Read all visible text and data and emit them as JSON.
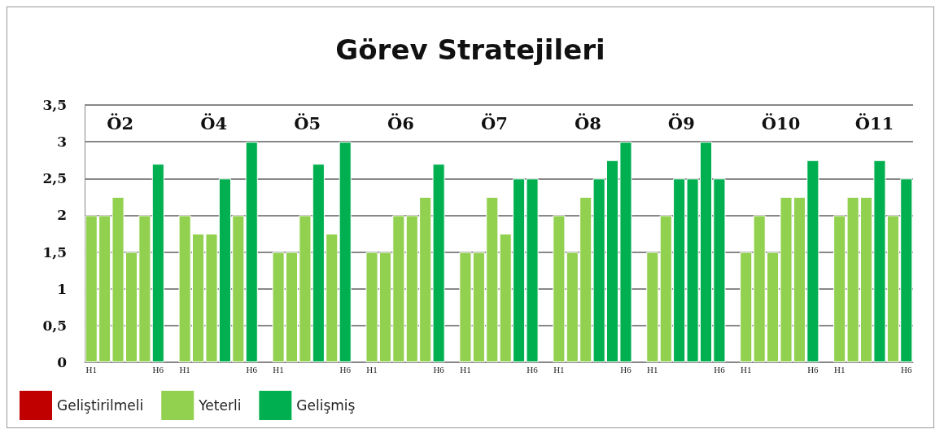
{
  "chart_data": {
    "type": "bar",
    "title": "Görev Stratejileri",
    "stacked": true,
    "categories": [
      "H1",
      null,
      null,
      null,
      null,
      "H6",
      null,
      "H1",
      null,
      null,
      null,
      null,
      "H6",
      null,
      "H1",
      null,
      null,
      null,
      null,
      "H6",
      null,
      "H1",
      null,
      null,
      null,
      null,
      "H6",
      null,
      "H1",
      null,
      null,
      null,
      null,
      "H6",
      null,
      "H1",
      null,
      null,
      null,
      null,
      "H6",
      null,
      "H1",
      null,
      null,
      null,
      null,
      "H6",
      null,
      "H1",
      null,
      null,
      null,
      null,
      "H6",
      null,
      "H1",
      null,
      null,
      null,
      null,
      "H6"
    ],
    "series": [
      {
        "name": "Geliştirilmeli",
        "color": "#c00000",
        "values": [
          null,
          null,
          null,
          null,
          null,
          null,
          null,
          null,
          null,
          null,
          null,
          null,
          null,
          null,
          null,
          null,
          null,
          null,
          null,
          null,
          null,
          null,
          null,
          null,
          null,
          null,
          null,
          null,
          null,
          null,
          null,
          null,
          null,
          null,
          null,
          null,
          null,
          null,
          null,
          null,
          null,
          null,
          null,
          null,
          null,
          null,
          null,
          null,
          null,
          null,
          null,
          null,
          null,
          null,
          null,
          null,
          null,
          null,
          null,
          null,
          null,
          null
        ]
      },
      {
        "name": "Yeterli",
        "color": "#92d050",
        "values": [
          2,
          2,
          2.25,
          1.5,
          2,
          null,
          null,
          2,
          1.75,
          1.75,
          null,
          2,
          null,
          null,
          1.5,
          1.5,
          2,
          null,
          1.75,
          null,
          null,
          1.5,
          1.5,
          2,
          2,
          2.25,
          null,
          null,
          1.5,
          1.5,
          2.25,
          1.75,
          null,
          null,
          null,
          2,
          1.5,
          2.25,
          null,
          null,
          null,
          null,
          1.5,
          2,
          null,
          null,
          null,
          null,
          null,
          1.5,
          2,
          1.5,
          2.25,
          2.25,
          null,
          null,
          2,
          2.25,
          2.25,
          null,
          2,
          null
        ]
      },
      {
        "name": "Gelişmiş",
        "color": "#00b050",
        "values": [
          null,
          null,
          null,
          null,
          null,
          2.7,
          null,
          null,
          null,
          null,
          2.5,
          null,
          3,
          null,
          null,
          null,
          null,
          2.7,
          null,
          3,
          null,
          null,
          null,
          null,
          null,
          null,
          2.7,
          null,
          null,
          null,
          null,
          null,
          2.5,
          2.5,
          null,
          null,
          null,
          null,
          2.5,
          2.75,
          3,
          null,
          null,
          null,
          2.5,
          2.5,
          3,
          2.5,
          null,
          null,
          null,
          null,
          null,
          null,
          2.75,
          null,
          null,
          null,
          null,
          2.75,
          null,
          2.5
        ]
      }
    ],
    "annotations": [
      "Ö2",
      "Ö4",
      "Ö5",
      "Ö6",
      "Ö7",
      "Ö8",
      "Ö9",
      "Ö10",
      "Ö11"
    ],
    "ylim": [
      0,
      3.5
    ],
    "yticks": [
      0,
      {
        "value": 0.5,
        "label": "0,5"
      },
      1,
      {
        "value": 1.5,
        "label": "1,5"
      },
      2,
      {
        "value": 2.5,
        "label": "2,5"
      },
      3,
      {
        "value": 3.5,
        "label": "3,5"
      }
    ],
    "grid": "y",
    "legend": "bottom left"
  }
}
